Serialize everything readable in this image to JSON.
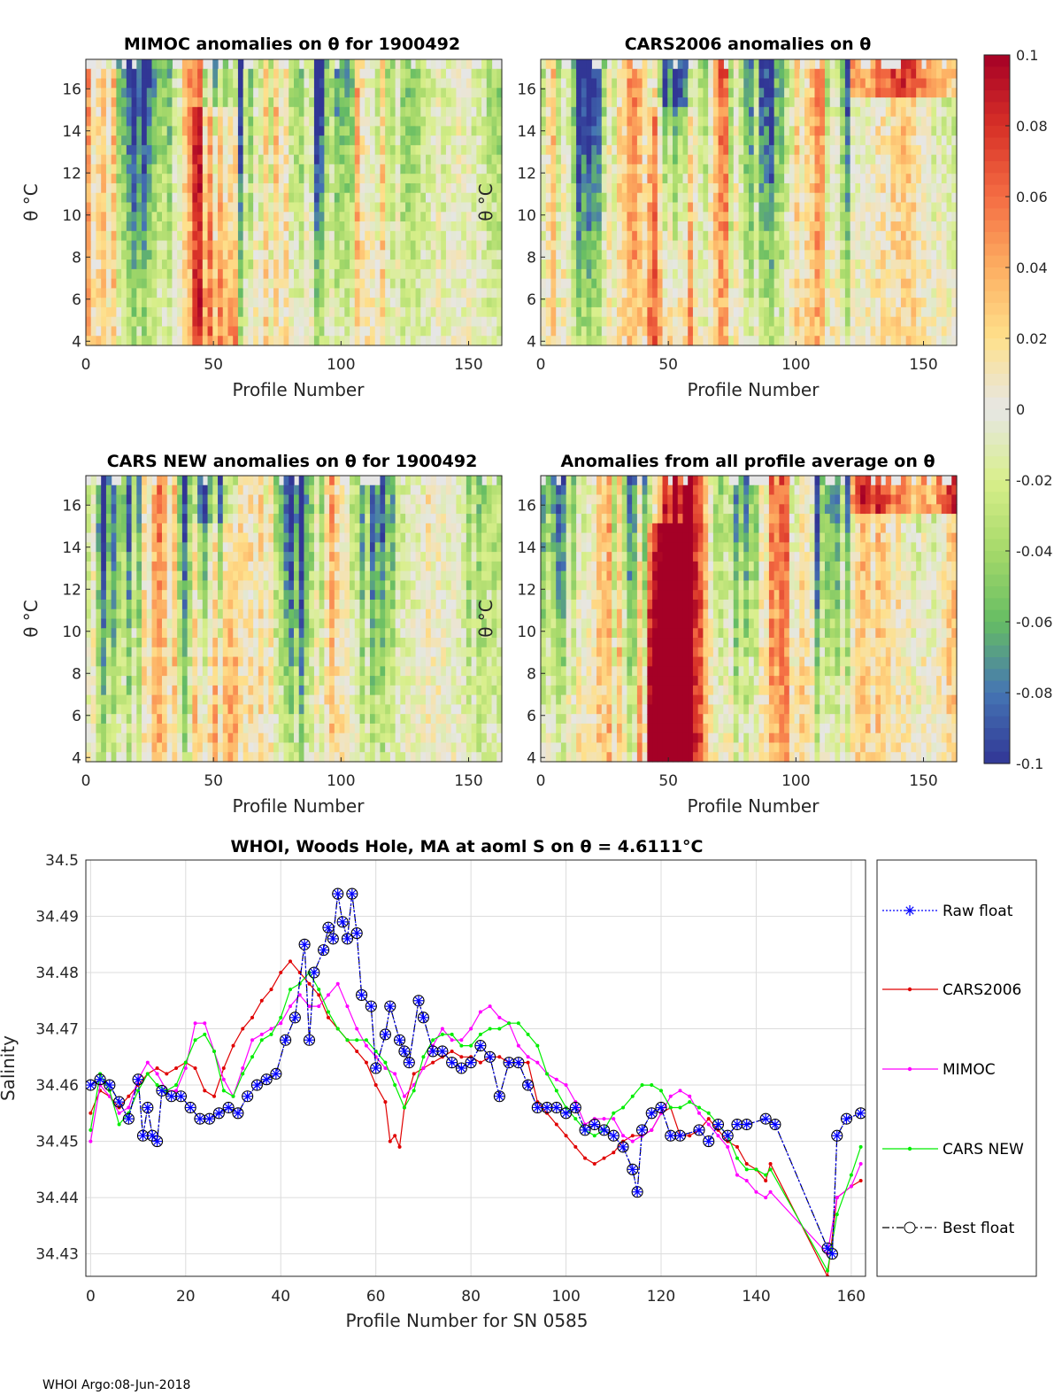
{
  "footer": "WHOI Argo:08-Jun-2018",
  "colorbar": {
    "ticks": [
      "0.1",
      "0.08",
      "0.06",
      "0.04",
      "0.02",
      "0",
      "-0.02",
      "-0.04",
      "-0.06",
      "-0.08",
      "-0.1"
    ],
    "colors": [
      "#a50026",
      "#d73027",
      "#f46d43",
      "#fdae61",
      "#fee08b",
      "#e6e6e6",
      "#d9ef8b",
      "#a6d96a",
      "#66bd63",
      "#4575b4",
      "#313695"
    ]
  },
  "heatmaps": [
    {
      "title": "MIMOC anomalies on θ  for 1900492",
      "xlabel": "Profile Number",
      "ylabel": "θ °C"
    },
    {
      "title": "CARS2006 anomalies on θ",
      "xlabel": "Profile Number",
      "ylabel": "θ °C"
    },
    {
      "title": "CARS NEW anomalies on θ for 1900492",
      "xlabel": "Profile Number",
      "ylabel": "θ °C"
    },
    {
      "title": "Anomalies from all profile average on θ",
      "xlabel": "Profile Number",
      "ylabel": "θ °C"
    }
  ],
  "heat_xticks": [
    "0",
    "50",
    "100",
    "150"
  ],
  "heat_yticks": [
    "4",
    "6",
    "8",
    "10",
    "12",
    "14",
    "16"
  ],
  "chart_data": [
    {
      "type": "heatmap",
      "title": "MIMOC anomalies on θ  for 1900492",
      "xlabel": "Profile Number",
      "ylabel": "θ °C",
      "xlim": [
        0,
        163
      ],
      "ylim": [
        3.8,
        17.4
      ],
      "clim": [
        -0.1,
        0.1
      ]
    },
    {
      "type": "heatmap",
      "title": "CARS2006 anomalies on θ",
      "xlabel": "Profile Number",
      "ylabel": "θ °C",
      "xlim": [
        0,
        163
      ],
      "ylim": [
        3.8,
        17.4
      ],
      "clim": [
        -0.1,
        0.1
      ]
    },
    {
      "type": "heatmap",
      "title": "CARS NEW anomalies on θ for 1900492",
      "xlabel": "Profile Number",
      "ylabel": "θ °C",
      "xlim": [
        0,
        163
      ],
      "ylim": [
        3.8,
        17.4
      ],
      "clim": [
        -0.1,
        0.1
      ]
    },
    {
      "type": "heatmap",
      "title": "Anomalies from all profile average on θ",
      "xlabel": "Profile Number",
      "ylabel": "θ °C",
      "xlim": [
        0,
        163
      ],
      "ylim": [
        3.8,
        17.4
      ],
      "clim": [
        -0.1,
        0.1
      ]
    },
    {
      "type": "line",
      "title": "WHOI, Woods Hole, MA at aoml S on θ = 4.6111°C",
      "xlabel": "Profile Number for SN 0585",
      "ylabel": "Salinity",
      "xlim": [
        -1,
        163
      ],
      "ylim": [
        34.426,
        34.5
      ],
      "xticks": [
        "0",
        "20",
        "40",
        "60",
        "80",
        "100",
        "120",
        "140",
        "160"
      ],
      "yticks": [
        "34.43",
        "34.44",
        "34.45",
        "34.46",
        "34.47",
        "34.48",
        "34.49",
        "34.5"
      ],
      "grid": true,
      "legend_position": "right-outside",
      "series": [
        {
          "name": "Raw float",
          "color": "#0000ff",
          "marker": "*",
          "x": [
            0,
            2,
            4,
            6,
            8,
            10,
            11,
            12,
            13,
            14,
            15,
            17,
            19,
            21,
            23,
            25,
            27,
            29,
            31,
            33,
            35,
            37,
            39,
            41,
            43,
            45,
            46,
            47,
            49,
            50,
            51,
            52,
            53,
            54,
            55,
            56,
            57,
            59,
            60,
            62,
            63,
            65,
            66,
            67,
            69,
            70,
            72,
            74,
            76,
            78,
            80,
            82,
            84,
            86,
            88,
            90,
            92,
            94,
            96,
            98,
            100,
            102,
            104,
            106,
            108,
            110,
            112,
            114,
            115,
            116,
            118,
            120,
            122,
            124,
            128,
            130,
            132,
            134,
            136,
            138,
            142,
            144,
            155,
            156,
            157,
            159,
            162
          ],
          "y": [
            34.46,
            34.461,
            34.46,
            34.457,
            34.454,
            34.461,
            34.451,
            34.456,
            34.451,
            34.45,
            34.459,
            34.458,
            34.458,
            34.456,
            34.454,
            34.454,
            34.455,
            34.456,
            34.455,
            34.458,
            34.46,
            34.461,
            34.462,
            34.468,
            34.472,
            34.485,
            34.468,
            34.48,
            34.484,
            34.488,
            34.486,
            34.494,
            34.489,
            34.486,
            34.494,
            34.487,
            34.476,
            34.474,
            34.463,
            34.469,
            34.474,
            34.468,
            34.466,
            34.464,
            34.475,
            34.472,
            34.466,
            34.466,
            34.464,
            34.463,
            34.464,
            34.467,
            34.465,
            34.458,
            34.464,
            34.464,
            34.46,
            34.456,
            34.456,
            34.456,
            34.455,
            34.456,
            34.452,
            34.453,
            34.452,
            34.451,
            34.449,
            34.445,
            34.441,
            34.452,
            34.455,
            34.456,
            34.451,
            34.451,
            34.452,
            34.45,
            34.453,
            34.451,
            34.453,
            34.453,
            34.454,
            34.453,
            34.431,
            34.43,
            34.451,
            34.454,
            34.455
          ]
        },
        {
          "name": "CARS2006",
          "color": "#e00000",
          "marker": ".",
          "x": [
            0,
            2,
            4,
            6,
            8,
            10,
            12,
            14,
            16,
            18,
            20,
            22,
            24,
            26,
            28,
            30,
            32,
            34,
            36,
            38,
            40,
            42,
            44,
            46,
            48,
            50,
            52,
            54,
            56,
            58,
            60,
            62,
            63,
            64,
            65,
            66,
            68,
            70,
            72,
            74,
            76,
            78,
            80,
            82,
            84,
            86,
            88,
            90,
            92,
            94,
            96,
            98,
            100,
            102,
            104,
            106,
            108,
            110,
            112,
            114,
            116,
            118,
            120,
            122,
            124,
            126,
            128,
            130,
            132,
            134,
            136,
            138,
            140,
            142,
            143,
            155,
            157,
            160,
            162
          ],
          "y": [
            34.455,
            34.459,
            34.458,
            34.456,
            34.458,
            34.46,
            34.462,
            34.463,
            34.462,
            34.463,
            34.464,
            34.463,
            34.459,
            34.458,
            34.463,
            34.467,
            34.47,
            34.472,
            34.475,
            34.477,
            34.48,
            34.482,
            34.48,
            34.478,
            34.476,
            34.472,
            34.47,
            34.468,
            34.466,
            34.464,
            34.46,
            34.457,
            34.45,
            34.451,
            34.449,
            34.456,
            34.462,
            34.463,
            34.464,
            34.465,
            34.466,
            34.465,
            34.465,
            34.464,
            34.465,
            34.465,
            34.464,
            34.464,
            34.464,
            34.457,
            34.455,
            34.453,
            34.451,
            34.449,
            34.447,
            34.446,
            34.447,
            34.448,
            34.45,
            34.451,
            34.451,
            34.452,
            34.455,
            34.456,
            34.451,
            34.451,
            34.452,
            34.454,
            34.452,
            34.45,
            34.449,
            34.446,
            34.445,
            34.443,
            34.446,
            34.426,
            34.44,
            34.442,
            34.443
          ]
        },
        {
          "name": "MIMOC",
          "color": "#ff00ff",
          "marker": ".",
          "x": [
            0,
            2,
            4,
            6,
            8,
            10,
            12,
            14,
            16,
            18,
            20,
            22,
            24,
            26,
            28,
            30,
            32,
            34,
            36,
            38,
            40,
            42,
            44,
            46,
            48,
            50,
            52,
            54,
            56,
            58,
            60,
            62,
            64,
            66,
            68,
            70,
            72,
            74,
            76,
            78,
            80,
            82,
            84,
            86,
            88,
            90,
            92,
            94,
            96,
            98,
            100,
            102,
            104,
            106,
            108,
            110,
            112,
            114,
            116,
            118,
            120,
            122,
            124,
            126,
            128,
            130,
            132,
            134,
            136,
            138,
            140,
            142,
            143,
            155,
            157,
            160,
            162
          ],
          "y": [
            34.45,
            34.46,
            34.458,
            34.455,
            34.456,
            34.461,
            34.464,
            34.462,
            34.459,
            34.459,
            34.463,
            34.471,
            34.471,
            34.466,
            34.461,
            34.458,
            34.463,
            34.468,
            34.469,
            34.47,
            34.471,
            34.474,
            34.476,
            34.474,
            34.474,
            34.476,
            34.478,
            34.474,
            34.47,
            34.467,
            34.465,
            34.463,
            34.462,
            34.458,
            34.46,
            34.463,
            34.467,
            34.47,
            34.468,
            34.468,
            34.47,
            34.473,
            34.474,
            34.472,
            34.471,
            34.467,
            34.465,
            34.464,
            34.462,
            34.461,
            34.46,
            34.457,
            34.453,
            34.454,
            34.454,
            34.454,
            34.451,
            34.45,
            34.451,
            34.452,
            34.455,
            34.458,
            34.459,
            34.458,
            34.455,
            34.453,
            34.451,
            34.449,
            34.444,
            34.443,
            34.441,
            34.44,
            34.441,
            34.43,
            34.44,
            34.442,
            34.446
          ]
        },
        {
          "name": "CARS NEW",
          "color": "#00ee00",
          "marker": ".",
          "x": [
            0,
            2,
            4,
            6,
            8,
            10,
            12,
            14,
            16,
            18,
            20,
            22,
            24,
            26,
            28,
            30,
            32,
            34,
            36,
            38,
            40,
            42,
            44,
            46,
            48,
            50,
            52,
            54,
            56,
            58,
            60,
            62,
            64,
            66,
            68,
            70,
            72,
            74,
            76,
            78,
            80,
            82,
            84,
            86,
            88,
            90,
            92,
            94,
            96,
            98,
            100,
            102,
            104,
            106,
            108,
            110,
            112,
            114,
            116,
            118,
            120,
            122,
            124,
            126,
            128,
            130,
            132,
            134,
            136,
            138,
            140,
            142,
            143,
            155,
            157,
            160,
            162
          ],
          "y": [
            34.452,
            34.462,
            34.459,
            34.453,
            34.455,
            34.459,
            34.462,
            34.46,
            34.459,
            34.46,
            34.464,
            34.468,
            34.469,
            34.466,
            34.459,
            34.458,
            34.462,
            34.465,
            34.468,
            34.469,
            34.472,
            34.477,
            34.478,
            34.48,
            34.477,
            34.473,
            34.47,
            34.468,
            34.468,
            34.468,
            34.466,
            34.464,
            34.46,
            34.456,
            34.459,
            34.465,
            34.468,
            34.469,
            34.469,
            34.467,
            34.467,
            34.469,
            34.47,
            34.47,
            34.471,
            34.471,
            34.469,
            34.467,
            34.462,
            34.459,
            34.456,
            34.454,
            34.452,
            34.451,
            34.452,
            34.455,
            34.456,
            34.458,
            34.46,
            34.46,
            34.459,
            34.456,
            34.456,
            34.457,
            34.456,
            34.455,
            34.453,
            34.451,
            34.447,
            34.445,
            34.445,
            34.444,
            34.445,
            34.427,
            34.437,
            34.444,
            34.449
          ]
        },
        {
          "name": "Best float",
          "color": "#000000",
          "marker": "o",
          "x": [
            0,
            2,
            4,
            6,
            8,
            10,
            11,
            12,
            13,
            14,
            15,
            17,
            19,
            21,
            23,
            25,
            27,
            29,
            31,
            33,
            35,
            37,
            39,
            41,
            43,
            45,
            46,
            47,
            49,
            50,
            51,
            52,
            53,
            54,
            55,
            56,
            57,
            59,
            60,
            62,
            63,
            65,
            66,
            67,
            69,
            70,
            72,
            74,
            76,
            78,
            80,
            82,
            84,
            86,
            88,
            90,
            92,
            94,
            96,
            98,
            100,
            102,
            104,
            106,
            108,
            110,
            112,
            114,
            115,
            116,
            118,
            120,
            122,
            124,
            128,
            130,
            132,
            134,
            136,
            138,
            142,
            144,
            155,
            156,
            157,
            159,
            162
          ],
          "y": [
            34.46,
            34.461,
            34.46,
            34.457,
            34.454,
            34.461,
            34.451,
            34.456,
            34.451,
            34.45,
            34.459,
            34.458,
            34.458,
            34.456,
            34.454,
            34.454,
            34.455,
            34.456,
            34.455,
            34.458,
            34.46,
            34.461,
            34.462,
            34.468,
            34.472,
            34.485,
            34.468,
            34.48,
            34.484,
            34.488,
            34.486,
            34.494,
            34.489,
            34.486,
            34.494,
            34.487,
            34.476,
            34.474,
            34.463,
            34.469,
            34.474,
            34.468,
            34.466,
            34.464,
            34.475,
            34.472,
            34.466,
            34.466,
            34.464,
            34.463,
            34.464,
            34.467,
            34.465,
            34.458,
            34.464,
            34.464,
            34.46,
            34.456,
            34.456,
            34.456,
            34.455,
            34.456,
            34.452,
            34.453,
            34.452,
            34.451,
            34.449,
            34.445,
            34.441,
            34.452,
            34.455,
            34.456,
            34.451,
            34.451,
            34.452,
            34.45,
            34.453,
            34.451,
            34.453,
            34.453,
            34.454,
            34.453,
            34.431,
            34.43,
            34.451,
            34.454,
            34.455
          ]
        }
      ]
    }
  ]
}
